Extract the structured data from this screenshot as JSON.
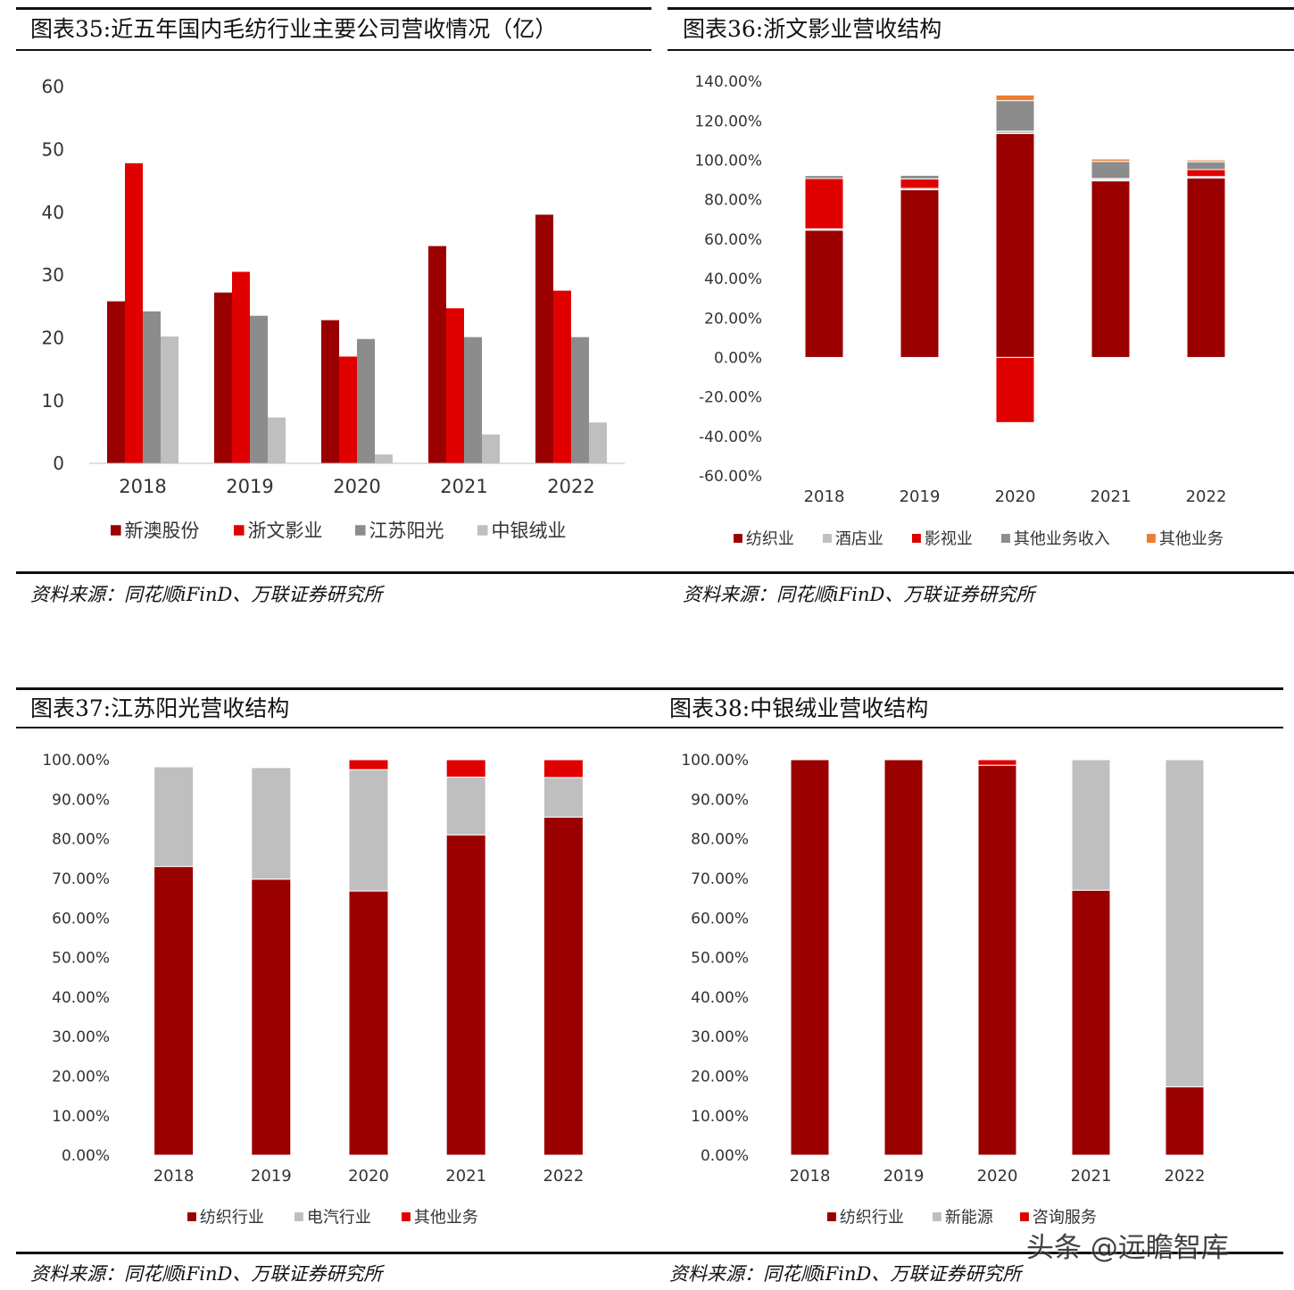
{
  "chart_data": [
    {
      "id": "c35",
      "type": "bar",
      "title": "图表35:近五年国内毛纺行业主要公司营收情况（亿）",
      "source": "资料来源：同花顺iFinD、万联证券研究所",
      "categories": [
        "2018",
        "2019",
        "2020",
        "2021",
        "2022"
      ],
      "ylim": [
        0,
        60
      ],
      "yticks": [
        "0",
        "10",
        "20",
        "30",
        "40",
        "50",
        "60"
      ],
      "series": [
        {
          "name": "新澳股份",
          "color": "#9b0000",
          "values": [
            25.8,
            27.2,
            22.8,
            34.6,
            39.6
          ]
        },
        {
          "name": "浙文影业",
          "color": "#e00000",
          "values": [
            47.8,
            30.5,
            17.0,
            24.7,
            27.5
          ]
        },
        {
          "name": "江苏阳光",
          "color": "#8c8c8c",
          "values": [
            24.2,
            23.5,
            19.8,
            20.1,
            20.1
          ]
        },
        {
          "name": "中银绒业",
          "color": "#bfbfbf",
          "values": [
            20.2,
            7.3,
            1.4,
            4.6,
            6.5
          ]
        }
      ]
    },
    {
      "id": "c36",
      "type": "bar",
      "stacked": true,
      "title": "图表36:浙文影业营收结构",
      "source": "资料来源：同花顺iFinD、万联证券研究所",
      "categories": [
        "2018",
        "2019",
        "2020",
        "2021",
        "2022"
      ],
      "ylim": [
        -60,
        140
      ],
      "yticks": [
        "-60.00%",
        "-40.00%",
        "-20.00%",
        "0.00%",
        "20.00%",
        "40.00%",
        "60.00%",
        "80.00%",
        "100.00%",
        "120.00%",
        "140.00%"
      ],
      "series": [
        {
          "name": "纺织业",
          "color": "#9b0000",
          "values": [
            64.5,
            85.0,
            113.5,
            89.5,
            91.0
          ]
        },
        {
          "name": "酒店业",
          "color": "#bfbfbf",
          "values": [
            0.7,
            0.7,
            1.2,
            0.7,
            0.7
          ]
        },
        {
          "name": "影视业",
          "color": "#e00000",
          "values": [
            25.5,
            4.8,
            -33.0,
            0.5,
            3.5
          ]
        },
        {
          "name": "其他业务收入",
          "color": "#8c8c8c",
          "values": [
            1.5,
            1.8,
            15.5,
            8.7,
            4.0
          ]
        },
        {
          "name": "其他业务",
          "color": "#ed7d31",
          "values": [
            0.0,
            0.0,
            2.8,
            1.2,
            0.9
          ]
        }
      ]
    },
    {
      "id": "c37",
      "type": "bar",
      "stacked": true,
      "title": "图表37:江苏阳光营收结构",
      "source": "资料来源：同花顺iFinD、万联证券研究所",
      "categories": [
        "2018",
        "2019",
        "2020",
        "2021",
        "2022"
      ],
      "ylim": [
        0,
        100
      ],
      "yticks": [
        "0.00%",
        "10.00%",
        "20.00%",
        "30.00%",
        "40.00%",
        "50.00%",
        "60.00%",
        "70.00%",
        "80.00%",
        "90.00%",
        "100.00%"
      ],
      "series": [
        {
          "name": "纺织行业",
          "color": "#9b0000",
          "values": [
            73.0,
            69.8,
            66.8,
            81.0,
            85.5
          ]
        },
        {
          "name": "电汽行业",
          "color": "#bfbfbf",
          "values": [
            25.2,
            28.2,
            30.7,
            14.6,
            10.0
          ]
        },
        {
          "name": "其他业务",
          "color": "#e00000",
          "values": [
            0.0,
            0.0,
            2.5,
            4.4,
            4.5
          ]
        }
      ]
    },
    {
      "id": "c38",
      "type": "bar",
      "stacked": true,
      "title": "图表38:中银绒业营收结构",
      "source": "资料来源：同花顺iFinD、万联证券研究所",
      "categories": [
        "2018",
        "2019",
        "2020",
        "2021",
        "2022"
      ],
      "ylim": [
        0,
        100
      ],
      "yticks": [
        "0.00%",
        "10.00%",
        "20.00%",
        "30.00%",
        "40.00%",
        "50.00%",
        "60.00%",
        "70.00%",
        "80.00%",
        "90.00%",
        "100.00%"
      ],
      "series": [
        {
          "name": "纺织行业",
          "color": "#9b0000",
          "values": [
            100.0,
            100.0,
            98.6,
            67.0,
            17.3
          ]
        },
        {
          "name": "新能源",
          "color": "#bfbfbf",
          "values": [
            0.0,
            0.0,
            0.0,
            33.0,
            82.7
          ]
        },
        {
          "name": "咨询服务",
          "color": "#e00000",
          "values": [
            0.0,
            0.0,
            1.4,
            0.0,
            0.0
          ]
        }
      ]
    }
  ],
  "watermark": "头条 @远瞻智库"
}
